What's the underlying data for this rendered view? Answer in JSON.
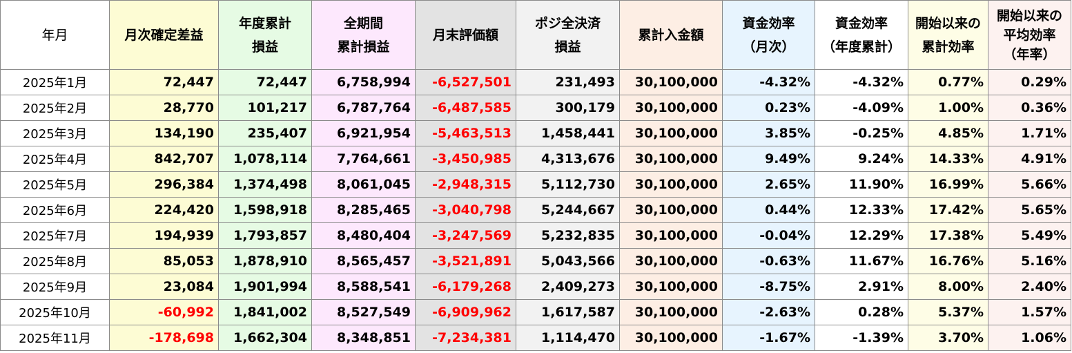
{
  "headers": [
    {
      "lines": [
        "年月"
      ]
    },
    {
      "lines": [
        "月次確定差益"
      ]
    },
    {
      "lines": [
        "年度累計",
        "損益"
      ]
    },
    {
      "lines": [
        "全期間",
        "累計損益"
      ]
    },
    {
      "lines": [
        "月末評価額"
      ]
    },
    {
      "lines": [
        "ポジ全決済",
        "損益"
      ]
    },
    {
      "lines": [
        "累計入金額"
      ]
    },
    {
      "lines": [
        "資金効率",
        "（月次）"
      ]
    },
    {
      "lines": [
        "資金効率",
        "（年度累計）"
      ]
    },
    {
      "lines": [
        "開始以来の",
        "累計効率"
      ]
    },
    {
      "lines": [
        "開始以来の",
        "平均効率",
        "（年率）"
      ]
    }
  ],
  "rows": [
    [
      "2025年1月",
      "72,447",
      "72,447",
      "6,758,994",
      "-6,527,501",
      "231,493",
      "30,100,000",
      "-4.32%",
      "-4.32%",
      "0.77%",
      "0.29%"
    ],
    [
      "2025年2月",
      "28,770",
      "101,217",
      "6,787,764",
      "-6,487,585",
      "300,179",
      "30,100,000",
      "0.23%",
      "-4.09%",
      "1.00%",
      "0.36%"
    ],
    [
      "2025年3月",
      "134,190",
      "235,407",
      "6,921,954",
      "-5,463,513",
      "1,458,441",
      "30,100,000",
      "3.85%",
      "-0.25%",
      "4.85%",
      "1.71%"
    ],
    [
      "2025年4月",
      "842,707",
      "1,078,114",
      "7,764,661",
      "-3,450,985",
      "4,313,676",
      "30,100,000",
      "9.49%",
      "9.24%",
      "14.33%",
      "4.91%"
    ],
    [
      "2025年5月",
      "296,384",
      "1,374,498",
      "8,061,045",
      "-2,948,315",
      "5,112,730",
      "30,100,000",
      "2.65%",
      "11.90%",
      "16.99%",
      "5.66%"
    ],
    [
      "2025年6月",
      "224,420",
      "1,598,918",
      "8,285,465",
      "-3,040,798",
      "5,244,667",
      "30,100,000",
      "0.44%",
      "12.33%",
      "17.42%",
      "5.65%"
    ],
    [
      "2025年7月",
      "194,939",
      "1,793,857",
      "8,480,404",
      "-3,247,569",
      "5,232,835",
      "30,100,000",
      "-0.04%",
      "12.29%",
      "17.38%",
      "5.49%"
    ],
    [
      "2025年8月",
      "85,053",
      "1,878,910",
      "8,565,457",
      "-3,521,891",
      "5,043,566",
      "30,100,000",
      "-0.63%",
      "11.67%",
      "16.76%",
      "5.16%"
    ],
    [
      "2025年9月",
      "23,084",
      "1,901,994",
      "8,588,541",
      "-6,179,268",
      "2,409,273",
      "30,100,000",
      "-8.75%",
      "2.91%",
      "8.00%",
      "2.40%"
    ],
    [
      "2025年10月",
      "-60,992",
      "1,841,002",
      "8,527,549",
      "-6,909,962",
      "1,617,587",
      "30,100,000",
      "-2.63%",
      "0.28%",
      "5.37%",
      "1.57%"
    ],
    [
      "2025年11月",
      "-178,698",
      "1,662,304",
      "8,348,851",
      "-7,234,381",
      "1,114,470",
      "30,100,000",
      "-1.67%",
      "-1.39%",
      "3.70%",
      "1.06%"
    ]
  ],
  "colors": {
    "negative_red_columns": [
      1,
      4
    ],
    "column_backgrounds": [
      "#ffffff",
      "#fdfcd4",
      "#e6fbe4",
      "#fde8fd",
      "#e3e3e3",
      "#f2f2f2",
      "#fdeee4",
      "#e7f4fe",
      "#ffffff",
      "#fefde6",
      "#fdf2f0"
    ],
    "negative_text": "#ff0000"
  }
}
